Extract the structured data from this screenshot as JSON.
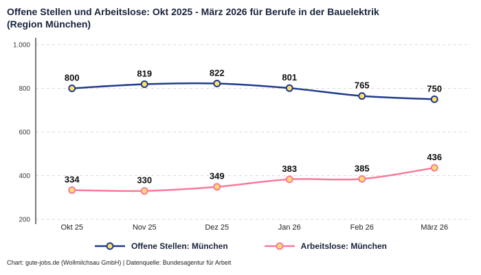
{
  "title": "Offene Stellen und Arbeitslose: Okt 2025 - März 2026 für Berufe in der Bauelektrik\n(Region München)",
  "footer": "Chart: gute-jobs.de (Wollmilchsau GmbH) | Datenquelle: Bundesagentur für Arbeit",
  "chart_data": {
    "type": "line",
    "title": "Offene Stellen und Arbeitslose: Okt 2025 - März 2026 für Berufe in der Bauelektrik (Region München)",
    "categories": [
      "Okt 25",
      "Nov 25",
      "Dez 25",
      "Jan 26",
      "Feb 26",
      "März 26"
    ],
    "series": [
      {
        "name": "Offene Stellen: München",
        "values": [
          800,
          819,
          822,
          801,
          765,
          750
        ],
        "color": "#1e3a8a"
      },
      {
        "name": "Arbeitslose: München",
        "values": [
          334,
          330,
          349,
          383,
          385,
          436
        ],
        "color": "#f8799c"
      }
    ],
    "ylim": [
      200,
      1000
    ],
    "yticks": [
      {
        "value": 1000,
        "label": "1.000"
      },
      {
        "value": 800,
        "label": "800"
      },
      {
        "value": 600,
        "label": "600"
      },
      {
        "value": 400,
        "label": "400"
      },
      {
        "value": 200,
        "label": "200"
      }
    ],
    "grid": "horizontal-dashed",
    "legend_position": "bottom",
    "colors": {
      "grid": "#d9d9d9",
      "axis": "#222222",
      "marker_fill": "#ffe066",
      "label": "#111111"
    }
  }
}
